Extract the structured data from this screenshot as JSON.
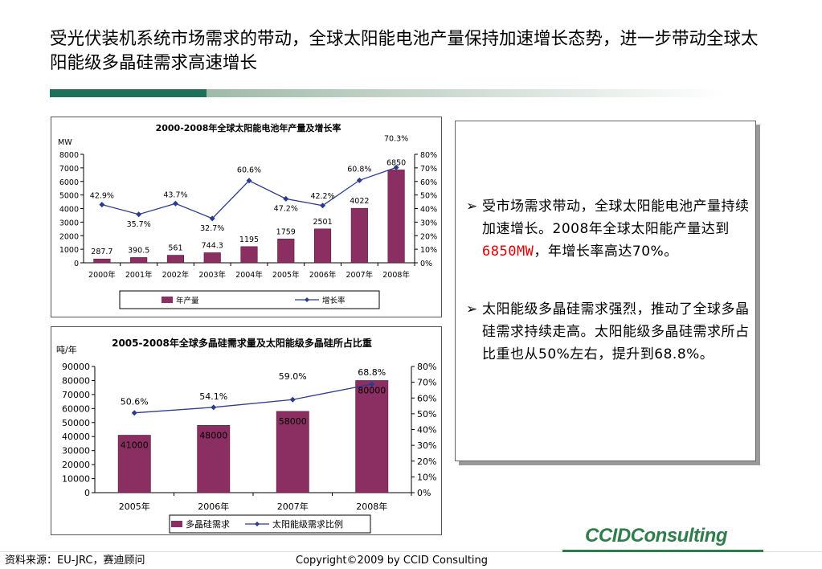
{
  "header": {
    "title": "受光伏装机系统市场需求的带动，全球太阳能电池产量保持加速增长态势，进一步带动全球太阳能级多晶硅需求高速增长"
  },
  "colors": {
    "bar": "#8b2f62",
    "line": "#2b3b8f",
    "title_bar_dark": "#1f6f5a",
    "title_bar_light": "#b9cdbf",
    "logo": "#2e7d4a",
    "highlight": "#e00000"
  },
  "chart_data": [
    {
      "type": "bar",
      "title": "2000-2008年全球太阳能电池年产量及增长率",
      "ylabel": "MW",
      "categories": [
        "2000年",
        "2001年",
        "2002年",
        "2003年",
        "2004年",
        "2005年",
        "2006年",
        "2007年",
        "2008年"
      ],
      "ylim": [
        0,
        8000
      ],
      "yticks": [
        "8000",
        "7000",
        "6000",
        "5000",
        "4000",
        "3000",
        "2000",
        "1000",
        "0"
      ],
      "y2lim": [
        0,
        80
      ],
      "y2ticks": [
        "80%",
        "70%",
        "60%",
        "50%",
        "40%",
        "30%",
        "20%",
        "10%",
        "0%"
      ],
      "series": [
        {
          "name": "年产量",
          "kind": "bar",
          "values": [
            287.7,
            390.5,
            561,
            744.3,
            1195,
            1759,
            2501,
            4022,
            6850
          ],
          "labels": [
            "287.7",
            "390.5",
            "561",
            "744.3",
            "1195",
            "1759",
            "2501",
            "4022",
            "6850"
          ]
        },
        {
          "name": "增长率",
          "kind": "line",
          "values": [
            42.9,
            35.7,
            43.7,
            32.7,
            60.6,
            47.2,
            42.2,
            60.8,
            70.3
          ],
          "labels": [
            "42.9%",
            "35.7%",
            "43.7%",
            "32.7%",
            "60.6%",
            "47.2%",
            "42.2%",
            "60.8%",
            "70.3%"
          ]
        }
      ],
      "legend": "bottom"
    },
    {
      "type": "bar",
      "title": "2005-2008年全球多晶硅需求量及太阳能级多晶硅所占比重",
      "ylabel": "吨/年",
      "categories": [
        "2005年",
        "2006年",
        "2007年",
        "2008年"
      ],
      "ylim": [
        0,
        90000
      ],
      "yticks": [
        "90000",
        "80000",
        "70000",
        "60000",
        "50000",
        "40000",
        "30000",
        "20000",
        "10000",
        "0"
      ],
      "y2lim": [
        0,
        80
      ],
      "y2ticks": [
        "80%",
        "70%",
        "60%",
        "50%",
        "40%",
        "30%",
        "20%",
        "10%",
        "0%"
      ],
      "series": [
        {
          "name": "多晶硅需求",
          "kind": "bar",
          "values": [
            41000,
            48000,
            58000,
            80000
          ],
          "labels": [
            "41000",
            "48000",
            "58000",
            "80000"
          ]
        },
        {
          "name": "太阳能级需求比例",
          "kind": "line",
          "values": [
            50.6,
            54.1,
            59.0,
            68.8
          ],
          "labels": [
            "50.6%",
            "54.1%",
            "59.0%",
            "68.8%"
          ]
        }
      ],
      "legend": "bottom"
    }
  ],
  "bullets": [
    {
      "arrow": "➢",
      "text_before": "受市场需求带动，全球太阳能电池产量持续加速增长。2008年全球太阳能产量达到",
      "highlight": "6850MW",
      "text_after": "，年增长率高达70%。"
    },
    {
      "arrow": "➢",
      "text_before": "太阳能级多晶硅需求强烈，推动了全球多晶硅需求持续走高。太阳能级多晶硅需求所占比重也从50%左右，提升到68.8%。",
      "highlight": "",
      "text_after": ""
    }
  ],
  "footer": {
    "source": "资料来源：EU-JRC，赛迪顾问",
    "copyright": "Copyright©2009 by CCID Consulting",
    "logo": "CCIDConsulting"
  }
}
